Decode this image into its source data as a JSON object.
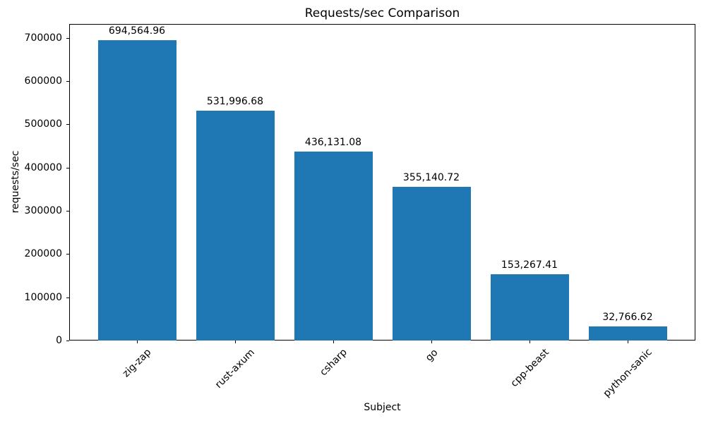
{
  "chart_data": {
    "type": "bar",
    "title": "Requests/sec Comparison",
    "xlabel": "Subject",
    "ylabel": "requests/sec",
    "categories": [
      "zig-zap",
      "rust-axum",
      "csharp",
      "go",
      "cpp-beast",
      "python-sanic"
    ],
    "values": [
      694564.96,
      531996.68,
      436131.08,
      355140.72,
      153267.41,
      32766.62
    ],
    "value_labels": [
      "694,564.96",
      "531,996.68",
      "436,131.08",
      "355,140.72",
      "153,267.41",
      "32,766.62"
    ],
    "yticks": [
      0,
      100000,
      200000,
      300000,
      400000,
      500000,
      600000,
      700000
    ],
    "ytick_labels": [
      "0",
      "100000",
      "200000",
      "300000",
      "400000",
      "500000",
      "600000",
      "700000"
    ],
    "ylim": [
      0,
      732000
    ],
    "bar_color": "#1f77b4",
    "grid": false,
    "legend_position": "none"
  }
}
